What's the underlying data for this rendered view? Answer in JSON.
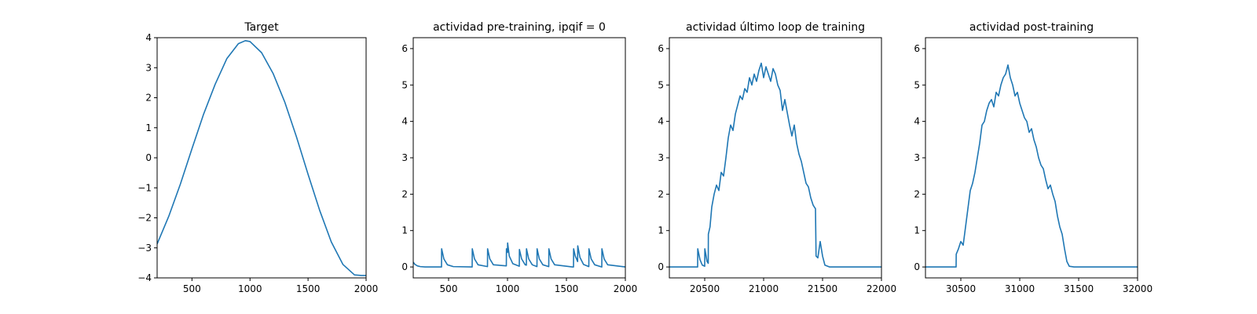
{
  "chart_data": [
    {
      "type": "line",
      "title": "Target",
      "xlim": [
        200,
        2000
      ],
      "ylim": [
        -4,
        4
      ],
      "xticks": [
        500,
        1000,
        1500,
        2000
      ],
      "yticks": [
        -4,
        -3,
        -2,
        -1,
        0,
        1,
        2,
        3,
        4
      ],
      "series": [
        {
          "color": "#1f77b4",
          "x": [
            200,
            300,
            400,
            500,
            600,
            700,
            800,
            900,
            960,
            1000,
            1100,
            1200,
            1300,
            1400,
            1500,
            1600,
            1700,
            1800,
            1900,
            1960,
            2000
          ],
          "y": [
            -2.87,
            -1.95,
            -0.88,
            0.3,
            1.45,
            2.45,
            3.3,
            3.8,
            3.9,
            3.87,
            3.5,
            2.8,
            1.85,
            0.7,
            -0.55,
            -1.75,
            -2.8,
            -3.55,
            -3.9,
            -3.92,
            -3.92
          ]
        }
      ]
    },
    {
      "type": "line",
      "title": "actividad pre-training, ipqif = 0",
      "xlim": [
        200,
        2000
      ],
      "ylim": [
        -0.3,
        6.3
      ],
      "xticks": [
        500,
        1000,
        1500,
        2000
      ],
      "yticks": [
        0,
        1,
        2,
        3,
        4,
        5,
        6
      ],
      "series": [
        {
          "color": "#1f77b4",
          "x": [
            200,
            215,
            235,
            260,
            300,
            440,
            441,
            460,
            490,
            540,
            700,
            701,
            720,
            750,
            830,
            831,
            850,
            880,
            990,
            991,
            1000,
            1001,
            1015,
            1045,
            1100,
            1101,
            1120,
            1150,
            1160,
            1161,
            1180,
            1210,
            1250,
            1251,
            1270,
            1300,
            1350,
            1351,
            1370,
            1400,
            1550,
            1560,
            1561,
            1575,
            1595,
            1596,
            1615,
            1645,
            1690,
            1691,
            1710,
            1740,
            1800,
            1801,
            1820,
            1850,
            2000
          ],
          "y": [
            0.13,
            0.07,
            0.03,
            0.01,
            0.0,
            0.0,
            0.5,
            0.22,
            0.06,
            0.01,
            0.0,
            0.5,
            0.22,
            0.06,
            0.01,
            0.5,
            0.22,
            0.06,
            0.03,
            0.5,
            0.4,
            0.66,
            0.3,
            0.09,
            0.02,
            0.48,
            0.22,
            0.06,
            0.05,
            0.5,
            0.22,
            0.06,
            0.01,
            0.5,
            0.22,
            0.06,
            0.01,
            0.5,
            0.22,
            0.06,
            0.0,
            0.0,
            0.5,
            0.3,
            0.15,
            0.58,
            0.26,
            0.07,
            0.01,
            0.5,
            0.22,
            0.06,
            0.0,
            0.5,
            0.22,
            0.06,
            0.0
          ]
        }
      ]
    },
    {
      "type": "line",
      "title": "actividad último loop de training",
      "xlim": [
        20200,
        22000
      ],
      "ylim": [
        -0.3,
        6.3
      ],
      "xticks": [
        20500,
        21000,
        21500,
        22000
      ],
      "yticks": [
        0,
        1,
        2,
        3,
        4,
        5,
        6
      ],
      "series": [
        {
          "color": "#1f77b4",
          "x": [
            20200,
            20440,
            20441,
            20460,
            20480,
            20500,
            20501,
            20520,
            20530,
            20531,
            20545,
            20560,
            20580,
            20600,
            20620,
            20640,
            20660,
            20680,
            20700,
            20720,
            20740,
            20760,
            20780,
            20800,
            20820,
            20840,
            20860,
            20880,
            20900,
            20920,
            20940,
            20960,
            20980,
            21000,
            21020,
            21040,
            21060,
            21080,
            21100,
            21120,
            21140,
            21160,
            21180,
            21200,
            21220,
            21240,
            21260,
            21280,
            21300,
            21320,
            21340,
            21360,
            21380,
            21400,
            21420,
            21440,
            21445,
            21460,
            21480,
            21500,
            21520,
            21560,
            21600,
            22000
          ],
          "y": [
            0.0,
            0.0,
            0.5,
            0.2,
            0.05,
            0.02,
            0.5,
            0.15,
            0.1,
            0.9,
            1.1,
            1.65,
            2.0,
            2.25,
            2.1,
            2.6,
            2.5,
            3.0,
            3.55,
            3.9,
            3.75,
            4.2,
            4.45,
            4.7,
            4.6,
            4.9,
            4.8,
            5.2,
            5.0,
            5.3,
            5.1,
            5.4,
            5.6,
            5.2,
            5.5,
            5.3,
            5.1,
            5.45,
            5.3,
            5.0,
            4.85,
            4.3,
            4.6,
            4.25,
            3.9,
            3.6,
            3.9,
            3.4,
            3.1,
            2.9,
            2.6,
            2.3,
            2.2,
            1.9,
            1.7,
            1.6,
            0.3,
            0.25,
            0.7,
            0.3,
            0.05,
            0.0,
            0.0,
            0.0
          ]
        }
      ]
    },
    {
      "type": "line",
      "title": "actividad post-training",
      "xlim": [
        30200,
        32000
      ],
      "ylim": [
        -0.3,
        6.3
      ],
      "xticks": [
        30500,
        31000,
        31500,
        32000
      ],
      "yticks": [
        0,
        1,
        2,
        3,
        4,
        5,
        6
      ],
      "series": [
        {
          "color": "#1f77b4",
          "x": [
            30200,
            30460,
            30461,
            30480,
            30500,
            30520,
            30540,
            30560,
            30580,
            30600,
            30620,
            30640,
            30660,
            30680,
            30700,
            30720,
            30740,
            30760,
            30780,
            30800,
            30820,
            30840,
            30860,
            30880,
            30900,
            30920,
            30940,
            30960,
            30980,
            31000,
            31020,
            31040,
            31060,
            31080,
            31100,
            31120,
            31140,
            31160,
            31180,
            31200,
            31220,
            31240,
            31260,
            31280,
            31300,
            31320,
            31340,
            31360,
            31380,
            31400,
            31420,
            31460,
            32000
          ],
          "y": [
            0.0,
            0.0,
            0.35,
            0.5,
            0.7,
            0.6,
            1.1,
            1.6,
            2.1,
            2.3,
            2.6,
            3.0,
            3.4,
            3.9,
            4.0,
            4.3,
            4.5,
            4.6,
            4.4,
            4.8,
            4.7,
            5.0,
            5.2,
            5.3,
            5.55,
            5.2,
            5.0,
            4.7,
            4.8,
            4.5,
            4.3,
            4.1,
            4.0,
            3.7,
            3.8,
            3.5,
            3.3,
            3.0,
            2.8,
            2.7,
            2.4,
            2.15,
            2.25,
            2.0,
            1.8,
            1.4,
            1.1,
            0.9,
            0.5,
            0.15,
            0.02,
            0.0,
            0.0
          ]
        }
      ]
    }
  ]
}
